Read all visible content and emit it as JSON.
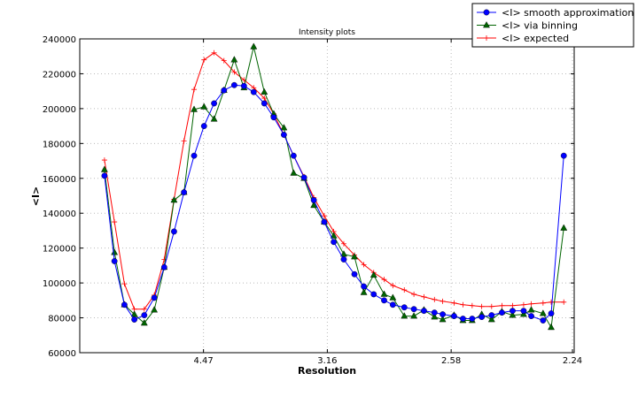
{
  "chart_data": {
    "type": "line",
    "title": "Intensity plots",
    "xlabel": "Resolution",
    "ylabel": "<I>",
    "x_scale": "reciprocal-square (1/d^2), resolution labels",
    "xticks": [
      "4.47",
      "3.16",
      "2.58",
      "2.24"
    ],
    "xtick_values": [
      4.47,
      3.16,
      2.58,
      2.24
    ],
    "ylim": [
      60000,
      240000
    ],
    "yticks": [
      60000,
      80000,
      100000,
      120000,
      140000,
      160000,
      180000,
      200000,
      220000,
      240000
    ],
    "grid": true,
    "legend_placement": "top-right, outside plot",
    "x": [
      10.0,
      8.44,
      7.44,
      6.73,
      6.19,
      5.76,
      5.41,
      5.12,
      4.87,
      4.65,
      4.46,
      4.29,
      4.14,
      4.0,
      3.88,
      3.77,
      3.66,
      3.57,
      3.48,
      3.4,
      3.32,
      3.25,
      3.18,
      3.12,
      3.06,
      3.0,
      2.95,
      2.9,
      2.85,
      2.81,
      2.76,
      2.72,
      2.68,
      2.64,
      2.61,
      2.57,
      2.54,
      2.51,
      2.48,
      2.45,
      2.42,
      2.39,
      2.36,
      2.34,
      2.31,
      2.29,
      2.26
    ],
    "series": [
      {
        "name": "<I> smooth approximation",
        "color": "#0000ff",
        "marker": "circle",
        "values": [
          161500,
          112500,
          87500,
          79000,
          81500,
          91500,
          109000,
          129500,
          152000,
          173000,
          190000,
          203000,
          210500,
          213500,
          213000,
          209500,
          203000,
          195000,
          185000,
          173000,
          160500,
          147500,
          135000,
          123500,
          113500,
          105000,
          98000,
          93500,
          90000,
          87500,
          86000,
          85000,
          84000,
          83000,
          82000,
          81000,
          79500,
          79500,
          80500,
          81500,
          83000,
          84000,
          84000,
          81000,
          78500,
          82500,
          173000
        ]
      },
      {
        "name": "<I> via binning",
        "color": "#006400",
        "marker": "triangle",
        "values": [
          165000,
          117500,
          87500,
          82000,
          77000,
          84500,
          109000,
          147500,
          152000,
          199500,
          201000,
          194000,
          210500,
          228000,
          212000,
          235500,
          209500,
          197000,
          189000,
          163000,
          160000,
          144500,
          135000,
          127000,
          116500,
          115000,
          94500,
          104500,
          93500,
          91500,
          81000,
          81000,
          84500,
          80500,
          79000,
          81500,
          78500,
          78500,
          82000,
          79000,
          83500,
          81500,
          82000,
          84500,
          82500,
          74500,
          131500
        ]
      },
      {
        "name": "<I> expected",
        "color": "#ff0000",
        "marker": "plus",
        "values": [
          170500,
          135000,
          99500,
          85000,
          85000,
          93000,
          113500,
          148000,
          181500,
          211000,
          228000,
          232000,
          227500,
          221000,
          216500,
          212000,
          206000,
          197000,
          185000,
          173000,
          161000,
          149000,
          138500,
          129500,
          122500,
          116000,
          110500,
          106000,
          102000,
          98500,
          96000,
          93500,
          92000,
          90500,
          89500,
          88500,
          87500,
          87000,
          86500,
          86500,
          87000,
          87000,
          87500,
          88000,
          88500,
          89000,
          89000
        ]
      }
    ]
  }
}
